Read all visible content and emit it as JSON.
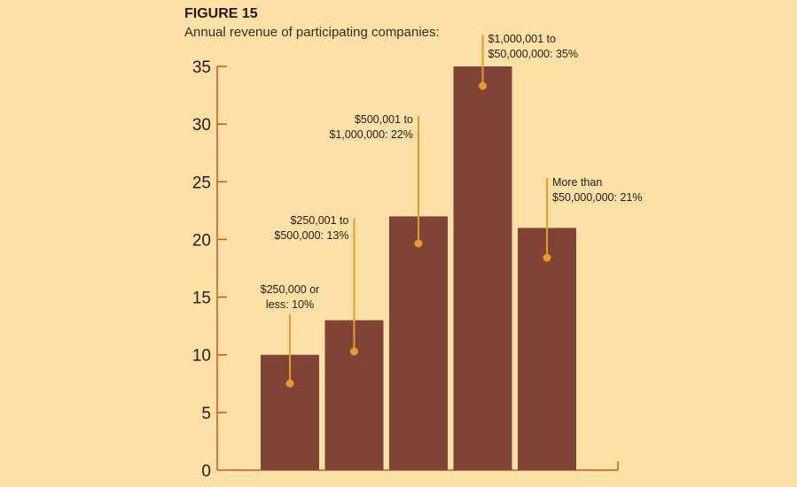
{
  "figure": {
    "label": "FIGURE 15",
    "subtitle": "Annual revenue of participating companies:"
  },
  "colors": {
    "background": "#FCE0A6",
    "bar": "#7F4435",
    "axis": "#C9581E",
    "callout": "#E89A2E"
  },
  "chart_data": {
    "type": "bar",
    "categories": [
      "$250,000 or less",
      "$250,001 to $500,000",
      "$500,001 to $1,000,000",
      "$1,000,001 to $50,000,000",
      "More than $50,000,000"
    ],
    "values": [
      10,
      13,
      22,
      35,
      21
    ],
    "annotations": [
      [
        "$250,000 or",
        "less: 10%"
      ],
      [
        "$250,001 to",
        "$500,000: 13%"
      ],
      [
        "$500,001 to",
        "$1,000,000: 22%"
      ],
      [
        "$1,000,001 to",
        "$50,000,000: 35%"
      ],
      [
        "More than",
        "$50,000,000: 21%"
      ]
    ],
    "y_ticks": [
      "0",
      "5",
      "10",
      "15",
      "20",
      "25",
      "30",
      "35"
    ],
    "ylim": [
      0,
      35
    ],
    "grid": false,
    "legend": "none"
  }
}
